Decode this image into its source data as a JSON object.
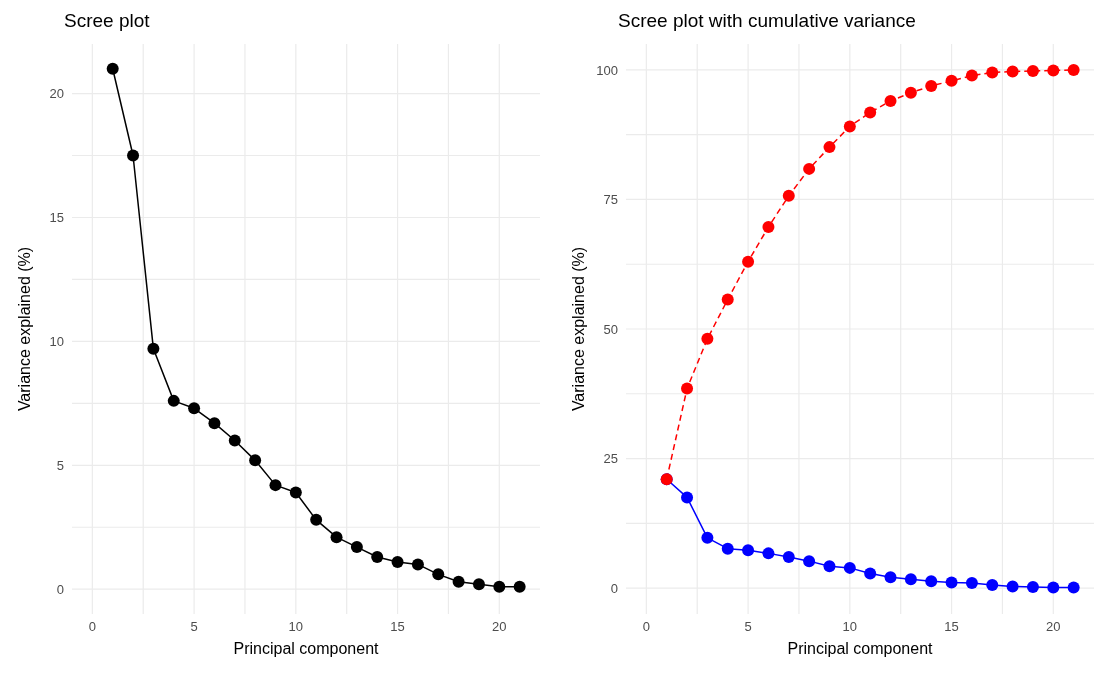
{
  "chart_data": [
    {
      "type": "line",
      "title": "Scree plot",
      "xlabel": "Principal component",
      "ylabel": "Variance explained (%)",
      "marker": "circle",
      "line_style": "solid",
      "grid": true,
      "x": [
        1,
        2,
        3,
        4,
        5,
        6,
        7,
        8,
        9,
        10,
        11,
        12,
        13,
        14,
        15,
        16,
        17,
        18,
        19,
        20,
        21
      ],
      "series": [
        {
          "color": "#000000",
          "values": [
            21.0,
            17.5,
            9.7,
            7.6,
            7.3,
            6.7,
            6.0,
            5.2,
            4.2,
            3.9,
            2.8,
            2.1,
            1.7,
            1.3,
            1.1,
            1.0,
            0.6,
            0.3,
            0.2,
            0.1,
            0.1
          ]
        }
      ],
      "xlim": [
        -1,
        22
      ],
      "xticks": [
        0,
        {
          "value": 2.5,
          "label": null
        },
        5,
        {
          "value": 7.5,
          "label": null
        },
        10,
        {
          "value": 12.5,
          "label": null
        },
        15,
        {
          "value": 17.5,
          "label": null
        },
        20
      ],
      "ylim": [
        -1,
        22
      ],
      "yticks": [
        0,
        {
          "value": 2.5,
          "label": null
        },
        5,
        {
          "value": 7.5,
          "label": null
        },
        10,
        {
          "value": 12.5,
          "label": null
        },
        15,
        {
          "value": 17.5,
          "label": null
        },
        20
      ]
    },
    {
      "type": "line",
      "title": "Scree plot with cumulative variance",
      "xlabel": "Principal component",
      "ylabel": "Variance explained (%)",
      "marker": "circle",
      "grid": true,
      "x": [
        1,
        2,
        3,
        4,
        5,
        6,
        7,
        8,
        9,
        10,
        11,
        12,
        13,
        14,
        15,
        16,
        17,
        18,
        19,
        20,
        21
      ],
      "series": [
        {
          "color": "#0000ff",
          "line_style": "solid",
          "values": [
            21.0,
            17.5,
            9.7,
            7.6,
            7.3,
            6.7,
            6.0,
            5.2,
            4.2,
            3.9,
            2.8,
            2.1,
            1.7,
            1.3,
            1.1,
            1.0,
            0.6,
            0.3,
            0.2,
            0.1,
            0.1
          ]
        },
        {
          "color": "#ff0000",
          "line_style": "dashed",
          "values": [
            21.0,
            38.5,
            48.1,
            55.7,
            63.0,
            69.7,
            75.7,
            80.9,
            85.1,
            89.1,
            91.8,
            94.0,
            95.6,
            96.9,
            97.9,
            98.9,
            99.5,
            99.7,
            99.8,
            99.9,
            100.0
          ]
        }
      ],
      "xlim": [
        -1,
        22
      ],
      "xticks": [
        0,
        {
          "value": 2.5,
          "label": null
        },
        5,
        {
          "value": 7.5,
          "label": null
        },
        10,
        {
          "value": 12.5,
          "label": null
        },
        15,
        {
          "value": 17.5,
          "label": null
        },
        20
      ],
      "ylim": [
        -5,
        105
      ],
      "yticks": [
        0,
        {
          "value": 12.5,
          "label": null
        },
        25,
        {
          "value": 37.5,
          "label": null
        },
        50,
        {
          "value": 62.5,
          "label": null
        },
        75,
        {
          "value": 87.5,
          "label": null
        },
        100
      ]
    }
  ]
}
